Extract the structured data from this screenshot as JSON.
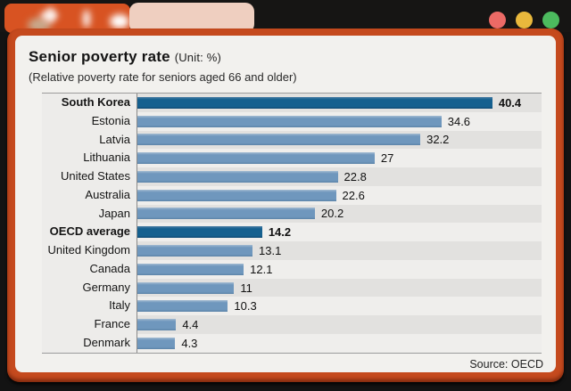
{
  "window": {
    "badge": {
      "name": "blurred-site-logo"
    },
    "tab": {
      "name": "blurred-browser-tab"
    },
    "traffic_lights": [
      {
        "name": "close",
        "color": "#ec6a66"
      },
      {
        "name": "minimize",
        "color": "#e9b83c"
      },
      {
        "name": "maximize",
        "color": "#4cba5e"
      }
    ]
  },
  "chart_data": {
    "type": "bar",
    "orientation": "horizontal",
    "title": "Senior poverty rate",
    "unit_label": "(Unit: %)",
    "subtitle": "(Relative poverty rate for seniors aged 66 and older)",
    "source": "Source: OECD",
    "categories": [
      "South Korea",
      "Estonia",
      "Latvia",
      "Lithuania",
      "United States",
      "Australia",
      "Japan",
      "OECD average",
      "United Kingdom",
      "Canada",
      "Germany",
      "Italy",
      "France",
      "Denmark"
    ],
    "values": [
      40.4,
      34.6,
      32.2,
      27,
      22.8,
      22.6,
      20.2,
      14.2,
      13.1,
      12.1,
      11,
      10.3,
      4.4,
      4.3
    ],
    "value_labels": [
      "40.4",
      "34.6",
      "32.2",
      "27",
      "22.8",
      "22.6",
      "20.2",
      "14.2",
      "13.1",
      "12.1",
      "11",
      "10.3",
      "4.4",
      "4.3"
    ],
    "highlighted": [
      "South Korea",
      "OECD average"
    ],
    "xlim": [
      0,
      46
    ],
    "grid": false,
    "legend": "none",
    "colors": {
      "bar": "#6f97bd",
      "bar_highlight": "#15608f",
      "row_stripe": "#e2e1df",
      "row_stripe_alt": "#efeeec",
      "frame": "#c54a1e",
      "card_bg": "#f2f1ee"
    }
  }
}
